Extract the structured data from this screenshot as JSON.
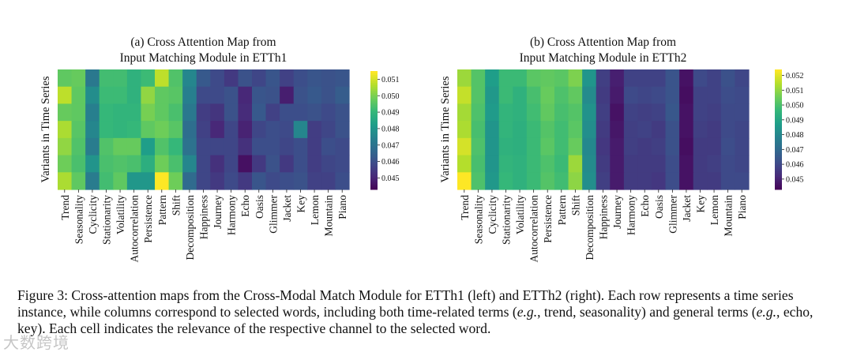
{
  "chart_data": [
    {
      "type": "heatmap",
      "title_line1": "(a) Cross Attention Map from",
      "title_line2": "Input Matching Module in ETTh1",
      "ylabel": "Variants in Time Series",
      "columns": [
        "Trend",
        "Seasonality",
        "Cyclicity",
        "Stationarity",
        "Volatility",
        "Autocorrelation",
        "Persistence",
        "Pattern",
        "Shift",
        "Decomposition",
        "Happiness",
        "Journey",
        "Harmony",
        "Echo",
        "Oasis",
        "Glimmer",
        "Jacket",
        "Key",
        "Lemon",
        "Mountain",
        "Piano"
      ],
      "colorbar_ticks": [
        "0.051",
        "0.050",
        "0.049",
        "0.048",
        "0.047",
        "0.046",
        "0.045"
      ],
      "vmin": 0.0443,
      "vmax": 0.0515,
      "values": [
        [
          0.0497,
          0.0498,
          0.0472,
          0.0493,
          0.0493,
          0.0489,
          0.0492,
          0.0508,
          0.0495,
          0.0476,
          0.0463,
          0.0459,
          0.0455,
          0.0461,
          0.0458,
          0.0462,
          0.0457,
          0.046,
          0.0462,
          0.0461,
          0.0462
        ],
        [
          0.0508,
          0.0497,
          0.0478,
          0.0492,
          0.0492,
          0.0489,
          0.0503,
          0.0497,
          0.0496,
          0.0474,
          0.0459,
          0.0459,
          0.0461,
          0.0451,
          0.0462,
          0.0461,
          0.0449,
          0.0461,
          0.0463,
          0.0461,
          0.0464
        ],
        [
          0.0498,
          0.0497,
          0.0474,
          0.0491,
          0.049,
          0.049,
          0.05,
          0.0497,
          0.0494,
          0.0472,
          0.0456,
          0.0454,
          0.0461,
          0.0452,
          0.0463,
          0.0457,
          0.046,
          0.046,
          0.0461,
          0.0459,
          0.0461
        ],
        [
          0.0506,
          0.0496,
          0.0476,
          0.0491,
          0.049,
          0.0491,
          0.0497,
          0.0499,
          0.0496,
          0.0469,
          0.0457,
          0.0451,
          0.0458,
          0.045,
          0.0458,
          0.046,
          0.0459,
          0.0476,
          0.0456,
          0.0458,
          0.0461
        ],
        [
          0.0503,
          0.0495,
          0.0473,
          0.0495,
          0.0498,
          0.0498,
          0.0483,
          0.0495,
          0.0491,
          0.047,
          0.0458,
          0.0458,
          0.0458,
          0.0453,
          0.046,
          0.046,
          0.0458,
          0.046,
          0.0456,
          0.046,
          0.0459
        ],
        [
          0.0499,
          0.0494,
          0.048,
          0.0494,
          0.0495,
          0.0494,
          0.0488,
          0.0499,
          0.0494,
          0.0476,
          0.0458,
          0.0453,
          0.0458,
          0.0446,
          0.0455,
          0.0461,
          0.0455,
          0.046,
          0.0456,
          0.0458,
          0.0459
        ],
        [
          0.0506,
          0.0497,
          0.0473,
          0.0493,
          0.0497,
          0.0481,
          0.0481,
          0.0515,
          0.0499,
          0.0468,
          0.0458,
          0.0455,
          0.0459,
          0.0455,
          0.0462,
          0.0459,
          0.046,
          0.0461,
          0.0457,
          0.0457,
          0.046
        ]
      ]
    },
    {
      "type": "heatmap",
      "title_line1": "(b) Cross Attention Map from",
      "title_line2": "Input Matching Module in ETTh2",
      "ylabel": "Variants in Time Series",
      "columns": [
        "Trend",
        "Seasonality",
        "Cyclicity",
        "Stationarity",
        "Volatility",
        "Autocorrelation",
        "Persistence",
        "Pattern",
        "Shift",
        "Decomposition",
        "Happiness",
        "Journey",
        "Harmony",
        "Echo",
        "Oasis",
        "Glimmer",
        "Jacket",
        "Key",
        "Lemon",
        "Mountain",
        "Piano"
      ],
      "colorbar_ticks": [
        "0.052",
        "0.051",
        "0.050",
        "0.049",
        "0.048",
        "0.047",
        "0.046",
        "0.045"
      ],
      "vmin": 0.0443,
      "vmax": 0.0524,
      "values": [
        [
          0.0512,
          0.0502,
          0.0488,
          0.0498,
          0.0498,
          0.0503,
          0.0504,
          0.0503,
          0.0508,
          0.0485,
          0.0458,
          0.045,
          0.0459,
          0.0459,
          0.0459,
          0.0464,
          0.0447,
          0.0461,
          0.0459,
          0.0463,
          0.046
        ],
        [
          0.0517,
          0.0502,
          0.0486,
          0.0498,
          0.0495,
          0.05,
          0.0505,
          0.0501,
          0.0504,
          0.0482,
          0.0457,
          0.0449,
          0.0461,
          0.046,
          0.0461,
          0.0464,
          0.0446,
          0.0459,
          0.0459,
          0.0462,
          0.0461
        ],
        [
          0.0513,
          0.0501,
          0.0487,
          0.0496,
          0.0495,
          0.0499,
          0.0504,
          0.05,
          0.0502,
          0.0484,
          0.0458,
          0.0447,
          0.0459,
          0.0458,
          0.0459,
          0.0465,
          0.0447,
          0.0459,
          0.0458,
          0.0461,
          0.0461
        ],
        [
          0.0514,
          0.05,
          0.0485,
          0.0496,
          0.0494,
          0.0498,
          0.0502,
          0.0499,
          0.0503,
          0.0483,
          0.0457,
          0.0448,
          0.0458,
          0.0459,
          0.0457,
          0.0463,
          0.0447,
          0.0458,
          0.0457,
          0.0461,
          0.046
        ],
        [
          0.0519,
          0.0501,
          0.0485,
          0.0495,
          0.0494,
          0.0498,
          0.0503,
          0.0499,
          0.0505,
          0.0481,
          0.0456,
          0.0449,
          0.0458,
          0.0457,
          0.0458,
          0.0463,
          0.0446,
          0.0457,
          0.0457,
          0.0462,
          0.046
        ],
        [
          0.0515,
          0.05,
          0.0485,
          0.0496,
          0.0495,
          0.0498,
          0.0501,
          0.0498,
          0.0512,
          0.0482,
          0.0457,
          0.0449,
          0.0457,
          0.0457,
          0.0457,
          0.0462,
          0.0447,
          0.0457,
          0.0458,
          0.0461,
          0.046
        ],
        [
          0.0524,
          0.0501,
          0.0486,
          0.0497,
          0.0495,
          0.0498,
          0.0502,
          0.0499,
          0.051,
          0.0483,
          0.0458,
          0.0449,
          0.0457,
          0.0457,
          0.0456,
          0.0462,
          0.0447,
          0.0457,
          0.0457,
          0.0461,
          0.0461
        ]
      ]
    }
  ],
  "caption": {
    "label": "Figure 3:",
    "part1": " Cross-attention maps from the Cross-Modal Match Module for ETTh1 (left) and ETTh2 (right). Each row represents a time series instance, while columns correspond to selected words, including both time-related terms (",
    "eg1": "e.g.",
    "part2": ", trend, seasonality) and general terms (",
    "eg2": "e.g.",
    "part3": ", echo, key). Each cell indicates the relevance of the respective channel to the selected word."
  },
  "watermark": "大数跨境"
}
